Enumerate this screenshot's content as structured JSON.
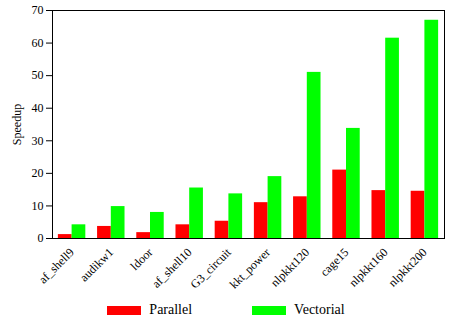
{
  "chart_data": {
    "type": "bar",
    "categories": [
      "af_shell9",
      "audikw1",
      "ldoor",
      "af_shell10",
      "G3_circuit",
      "kkt_power",
      "nlpkkt120",
      "cage15",
      "nlpkkt160",
      "nlpkkt200"
    ],
    "series": [
      {
        "name": "Parallel",
        "color": "#ff0000",
        "values": [
          1.2,
          3.7,
          1.8,
          4.2,
          5.3,
          11.0,
          12.8,
          21.0,
          14.7,
          14.5
        ]
      },
      {
        "name": "Vectorial",
        "color": "#00ff00",
        "values": [
          4.2,
          9.8,
          8.0,
          15.5,
          13.7,
          19.0,
          51.0,
          33.8,
          61.5,
          67.0
        ]
      }
    ],
    "y_label": "Speedup",
    "ylim": [
      0,
      70
    ],
    "yticks": [
      0,
      10,
      20,
      30,
      40,
      50,
      60,
      70
    ],
    "grid": false,
    "legend": "bottom"
  }
}
